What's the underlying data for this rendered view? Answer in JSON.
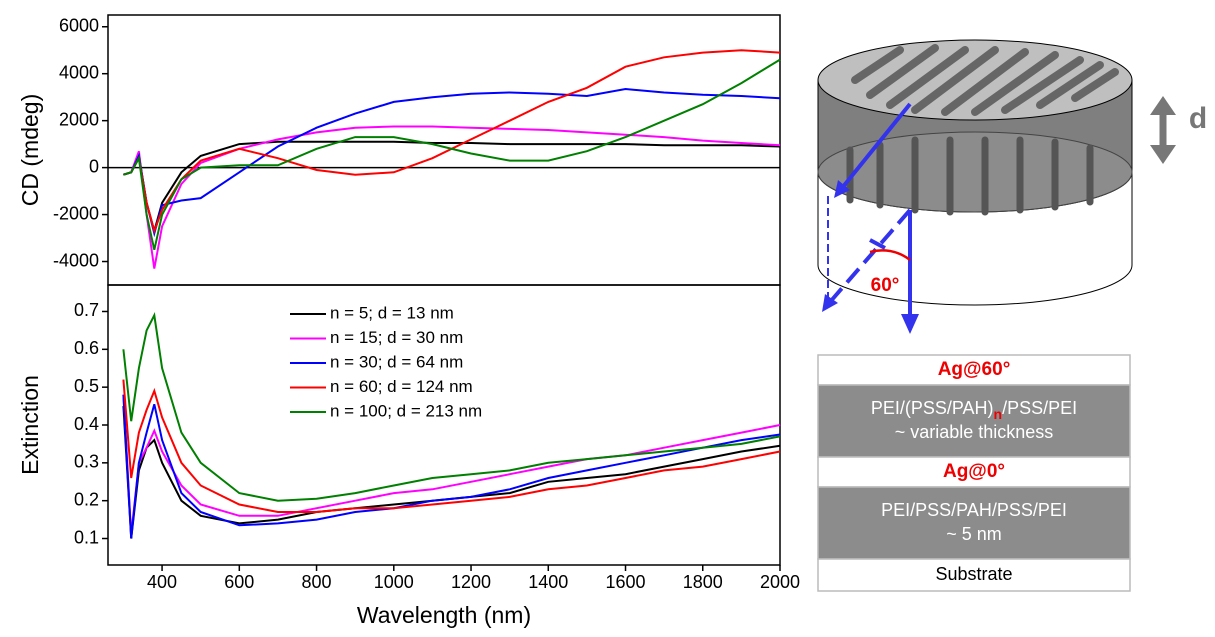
{
  "chart_data": [
    {
      "type": "line",
      "y_label": "CD (mdeg)",
      "x": [
        300,
        320,
        340,
        360,
        380,
        400,
        450,
        500,
        600,
        700,
        800,
        900,
        1000,
        1100,
        1200,
        1300,
        1400,
        1500,
        1600,
        1700,
        1800,
        1900,
        2000
      ],
      "xlim": [
        260,
        2000
      ],
      "ylim": [
        -5000,
        6500
      ],
      "yticks": [
        -4000,
        -2000,
        0,
        2000,
        4000,
        6000
      ],
      "hline": 0,
      "series": [
        {
          "color": "#000000",
          "values": [
            -300,
            -200,
            500,
            -1500,
            -2700,
            -1500,
            -200,
            500,
            1000,
            1100,
            1100,
            1100,
            1100,
            1050,
            1050,
            1000,
            1000,
            1000,
            1000,
            950,
            950,
            950,
            900
          ]
        },
        {
          "color": "#ff00ff",
          "values": [
            -300,
            -200,
            700,
            -2000,
            -4300,
            -2500,
            -700,
            200,
            800,
            1200,
            1500,
            1700,
            1750,
            1750,
            1700,
            1650,
            1600,
            1500,
            1400,
            1300,
            1150,
            1050,
            950
          ]
        },
        {
          "color": "#0000ff",
          "values": [
            -300,
            -200,
            500,
            -1500,
            -2800,
            -1600,
            -1400,
            -1300,
            -200,
            900,
            1700,
            2300,
            2800,
            3000,
            3150,
            3200,
            3150,
            3050,
            3350,
            3200,
            3100,
            3050,
            2950
          ]
        },
        {
          "color": "#ff0000",
          "values": [
            -300,
            -200,
            400,
            -1500,
            -2700,
            -1800,
            -500,
            300,
            800,
            400,
            -100,
            -300,
            -200,
            400,
            1200,
            2000,
            2800,
            3400,
            4300,
            4700,
            4900,
            5000,
            4900
          ]
        },
        {
          "color": "#008000",
          "values": [
            -300,
            -200,
            400,
            -2000,
            -3500,
            -2000,
            -500,
            0,
            100,
            100,
            800,
            1300,
            1300,
            1000,
            600,
            300,
            300,
            700,
            1300,
            2000,
            2700,
            3600,
            4600
          ]
        }
      ]
    },
    {
      "type": "line",
      "y_label": "Extinction",
      "x_label": "Wavelength (nm)",
      "legend": "upper center",
      "x": [
        300,
        320,
        340,
        360,
        380,
        400,
        450,
        500,
        600,
        700,
        800,
        900,
        1000,
        1100,
        1200,
        1300,
        1400,
        1500,
        1600,
        1700,
        1800,
        1900,
        2000
      ],
      "xlim": [
        260,
        2000
      ],
      "xticks": [
        400,
        600,
        800,
        1000,
        1200,
        1400,
        1600,
        1800,
        2000
      ],
      "ylim": [
        0.03,
        0.77
      ],
      "yticks": [
        0.1,
        0.2,
        0.3,
        0.4,
        0.5,
        0.6,
        0.7
      ],
      "series": [
        {
          "name": "n = 5; d = 13 nm",
          "color": "#000000",
          "values": [
            0.45,
            0.1,
            0.28,
            0.34,
            0.36,
            0.3,
            0.2,
            0.16,
            0.14,
            0.15,
            0.17,
            0.18,
            0.19,
            0.2,
            0.21,
            0.22,
            0.25,
            0.26,
            0.27,
            0.29,
            0.31,
            0.33,
            0.345
          ]
        },
        {
          "name": "n = 15; d = 30 nm",
          "color": "#ff00ff",
          "values": [
            0.48,
            0.11,
            0.3,
            0.34,
            0.385,
            0.33,
            0.24,
            0.19,
            0.16,
            0.16,
            0.18,
            0.2,
            0.22,
            0.23,
            0.25,
            0.27,
            0.29,
            0.31,
            0.32,
            0.34,
            0.36,
            0.38,
            0.4
          ]
        },
        {
          "name": "n = 30; d = 64 nm",
          "color": "#0000ff",
          "values": [
            0.48,
            0.1,
            0.3,
            0.38,
            0.455,
            0.36,
            0.22,
            0.17,
            0.135,
            0.14,
            0.15,
            0.17,
            0.18,
            0.2,
            0.21,
            0.23,
            0.26,
            0.28,
            0.3,
            0.32,
            0.34,
            0.36,
            0.375
          ]
        },
        {
          "name": "n = 60; d = 124 nm",
          "color": "#ff0000",
          "values": [
            0.52,
            0.26,
            0.38,
            0.44,
            0.49,
            0.42,
            0.3,
            0.24,
            0.19,
            0.17,
            0.17,
            0.18,
            0.18,
            0.19,
            0.2,
            0.21,
            0.23,
            0.24,
            0.26,
            0.28,
            0.29,
            0.31,
            0.33
          ]
        },
        {
          "name": "n = 100; d = 213 nm",
          "color": "#008000",
          "values": [
            0.6,
            0.41,
            0.55,
            0.65,
            0.69,
            0.55,
            0.38,
            0.3,
            0.22,
            0.2,
            0.205,
            0.22,
            0.24,
            0.26,
            0.27,
            0.28,
            0.3,
            0.31,
            0.32,
            0.33,
            0.34,
            0.35,
            0.37
          ]
        }
      ]
    }
  ],
  "diagram": {
    "d_label": "d",
    "angle_label": "60°",
    "layers": [
      {
        "lines": [
          "Ag@60°"
        ]
      },
      {
        "lines": [
          [
            "PEI/(PSS/PAH)",
            "n",
            "/PSS/PEI"
          ],
          "~ variable thickness"
        ]
      },
      {
        "lines": [
          "Ag@0°"
        ]
      },
      {
        "lines": [
          "PEI/PSS/PAH/PSS/PEI",
          "~ 5 nm"
        ]
      },
      {
        "lines": [
          "Substrate"
        ]
      }
    ]
  }
}
